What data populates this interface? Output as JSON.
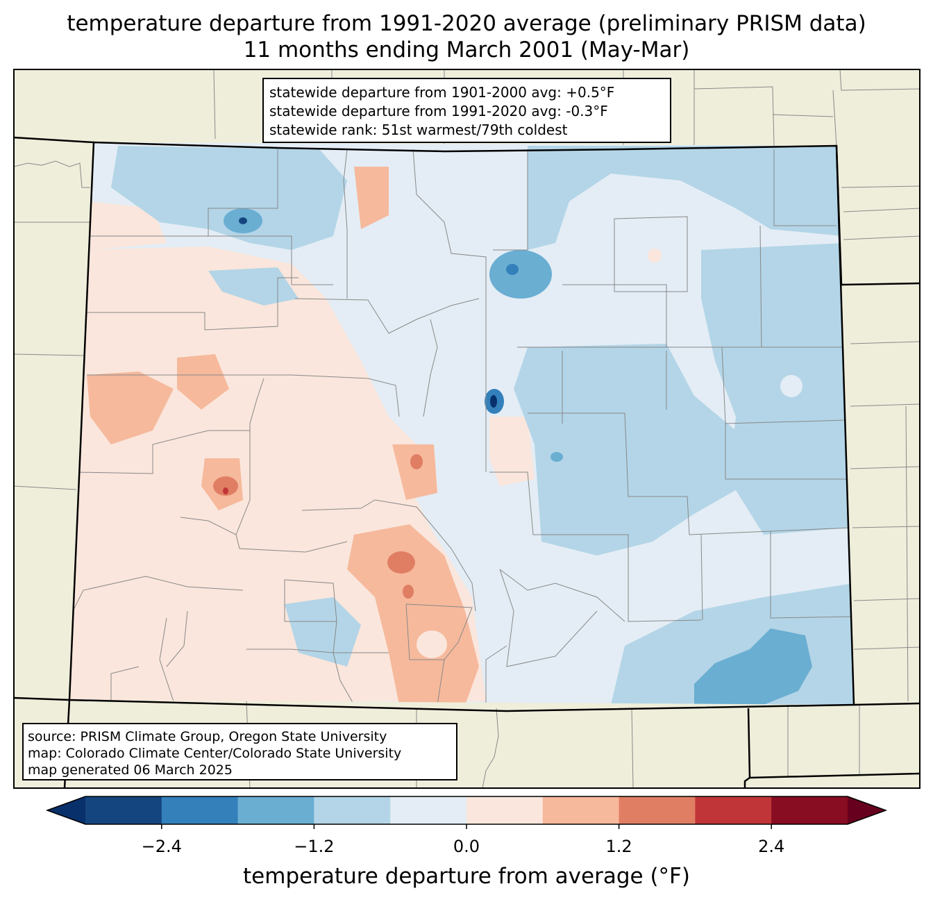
{
  "title": {
    "line1": "temperature departure from 1991-2020 average (preliminary PRISM data)",
    "line2": "11 months ending March 2001 (May-Mar)"
  },
  "stats": {
    "line1": "statewide departure from 1901-2000 avg: +0.5°F",
    "line2": "statewide departure from 1991-2020 avg: -0.3°F",
    "line3": "statewide rank: 51st warmest/79th coldest"
  },
  "source": {
    "line1": "source: PRISM Climate Group, Oregon State University",
    "line2": "map: Colorado Climate Center/Colorado State University",
    "line3": "map generated 06 March 2025"
  },
  "colorbar": {
    "label": "temperature departure from average (°F)",
    "ticks": [
      "−2.4",
      "−1.2",
      "0.0",
      "1.2",
      "2.4"
    ],
    "bins": [
      -3.0,
      -2.4,
      -1.8,
      -1.2,
      -0.6,
      0.0,
      0.6,
      1.2,
      1.8,
      2.4,
      3.0
    ],
    "colors": [
      "#08306b",
      "#15457f",
      "#3380bb",
      "#6aaed2",
      "#b3d5e7",
      "#e4edf5",
      "#fae6dc",
      "#f6b99c",
      "#e07e64",
      "#c03537",
      "#880c22",
      "#67001f"
    ]
  },
  "colors": {
    "land": "#efeedb",
    "county_border": "#888888",
    "state_border": "#000000"
  }
}
